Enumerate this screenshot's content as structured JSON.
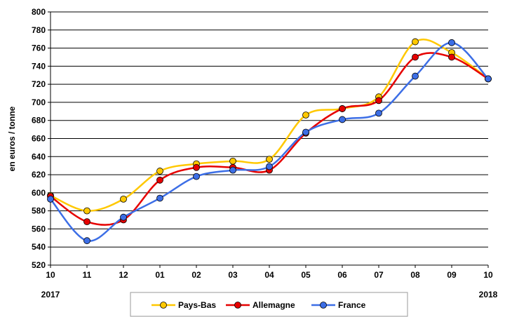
{
  "chart_data": {
    "type": "line",
    "title": "",
    "ylabel": "en euros / tonne",
    "xlabel": "",
    "categories": [
      "10",
      "11",
      "12",
      "01",
      "02",
      "03",
      "04",
      "05",
      "06",
      "07",
      "08",
      "09",
      "10"
    ],
    "year_labels": {
      "start": "2017",
      "end": "2018"
    },
    "ylim": [
      520,
      800
    ],
    "ytick_step": 20,
    "grid": "horizontal",
    "legend_position": "bottom",
    "series": [
      {
        "name": "Pays-Bas",
        "color": "#FFC800",
        "values": [
          597,
          580,
          593,
          624,
          632,
          635,
          637,
          686,
          693,
          706,
          767,
          755,
          726
        ]
      },
      {
        "name": "Allemagne",
        "color": "#E60000",
        "values": [
          596,
          568,
          570,
          614,
          628,
          628,
          625,
          666,
          693,
          702,
          750,
          750,
          726
        ]
      },
      {
        "name": "France",
        "color": "#3C6EE6",
        "values": [
          593,
          547,
          573,
          594,
          618,
          625,
          629,
          667,
          681,
          688,
          729,
          766,
          726
        ]
      }
    ]
  }
}
